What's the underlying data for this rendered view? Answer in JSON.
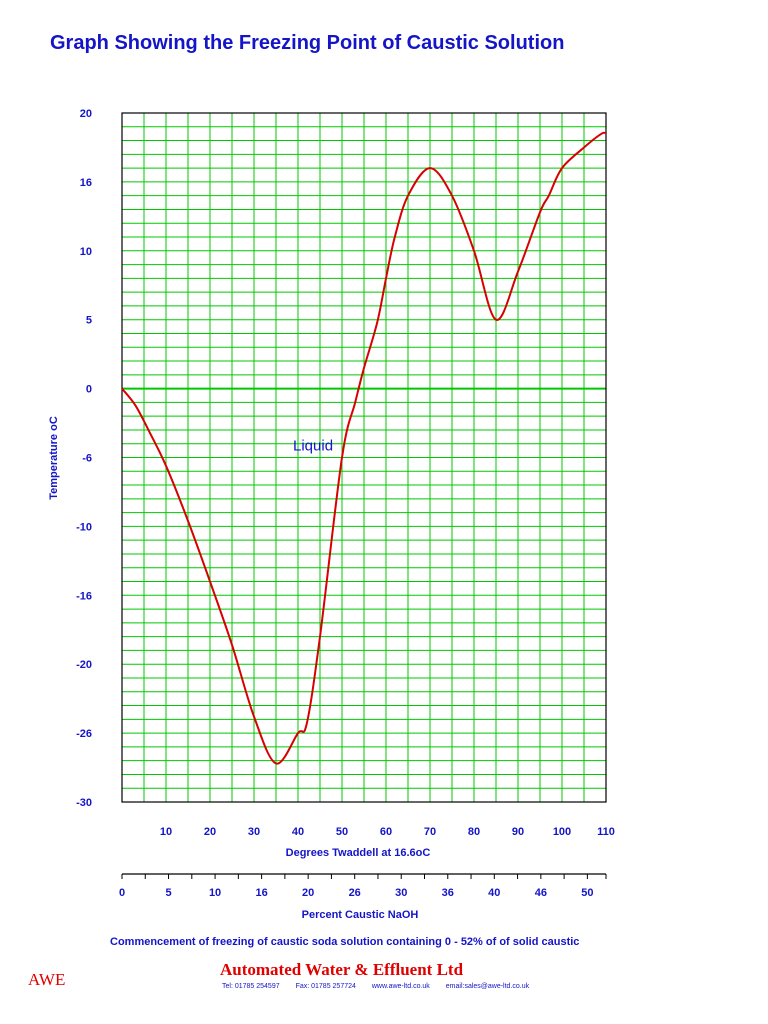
{
  "page": {
    "title": "Graph Showing the Freezing Point of Caustic Solution",
    "footnote": "Commencement of freezing of caustic soda solution containing 0 - 52%  of of solid caustic",
    "logo": "AWE",
    "company": "Automated Water & Effluent Ltd",
    "contact": {
      "tel": "Tel: 01785 254597",
      "fax": "Fax: 01785 257724",
      "web": "www.awe-ltd.co.uk",
      "email": "email:sales@awe-ltd.co.uk"
    }
  },
  "colors": {
    "title": "#1414c8",
    "grid": "#00c800",
    "curve": "#d80000",
    "axis": "#000000",
    "brand": "#e00000"
  },
  "chart_data": {
    "type": "line",
    "title": "Graph Showing the Freezing Point of Caustic Solution",
    "ylabel": "Temperature oC",
    "xlabel": "Degrees Twaddell at 16.6oC",
    "x2label": "Percent Caustic NaOH",
    "ylim": [
      -30,
      20
    ],
    "xlim": [
      0,
      110
    ],
    "x2lim": [
      0,
      52
    ],
    "y_tick_labels": [
      "20",
      "16",
      "10",
      "5",
      "0",
      "-6",
      "-10",
      "-16",
      "-20",
      "-26",
      "-30"
    ],
    "x_tick_labels": [
      "10",
      "20",
      "30",
      "40",
      "50",
      "60",
      "70",
      "80",
      "90",
      "100",
      "110"
    ],
    "x2_tick_labels": [
      "0",
      "5",
      "10",
      "16",
      "20",
      "26",
      "30",
      "36",
      "40",
      "46",
      "50"
    ],
    "grid": true,
    "annotations": [
      {
        "text": "Liquid",
        "x": 40,
        "y": -4.5
      }
    ],
    "series": [
      {
        "x": [
          0,
          3,
          6,
          10,
          15,
          20,
          25,
          30,
          35,
          40,
          42,
          45,
          50,
          53,
          55,
          58,
          60,
          62,
          65,
          70,
          75,
          80,
          85,
          90,
          95,
          97,
          100,
          105,
          109,
          110
        ],
        "y": [
          0,
          -1.2,
          -3,
          -5.6,
          -9.6,
          -14,
          -18.6,
          -23.8,
          -27.2,
          -25,
          -24.3,
          -18,
          -5,
          -1,
          1.5,
          4.8,
          8,
          11,
          14,
          16,
          14,
          10,
          5,
          8.5,
          12.8,
          14,
          16,
          17.5,
          18.5,
          18.5
        ]
      }
    ]
  }
}
